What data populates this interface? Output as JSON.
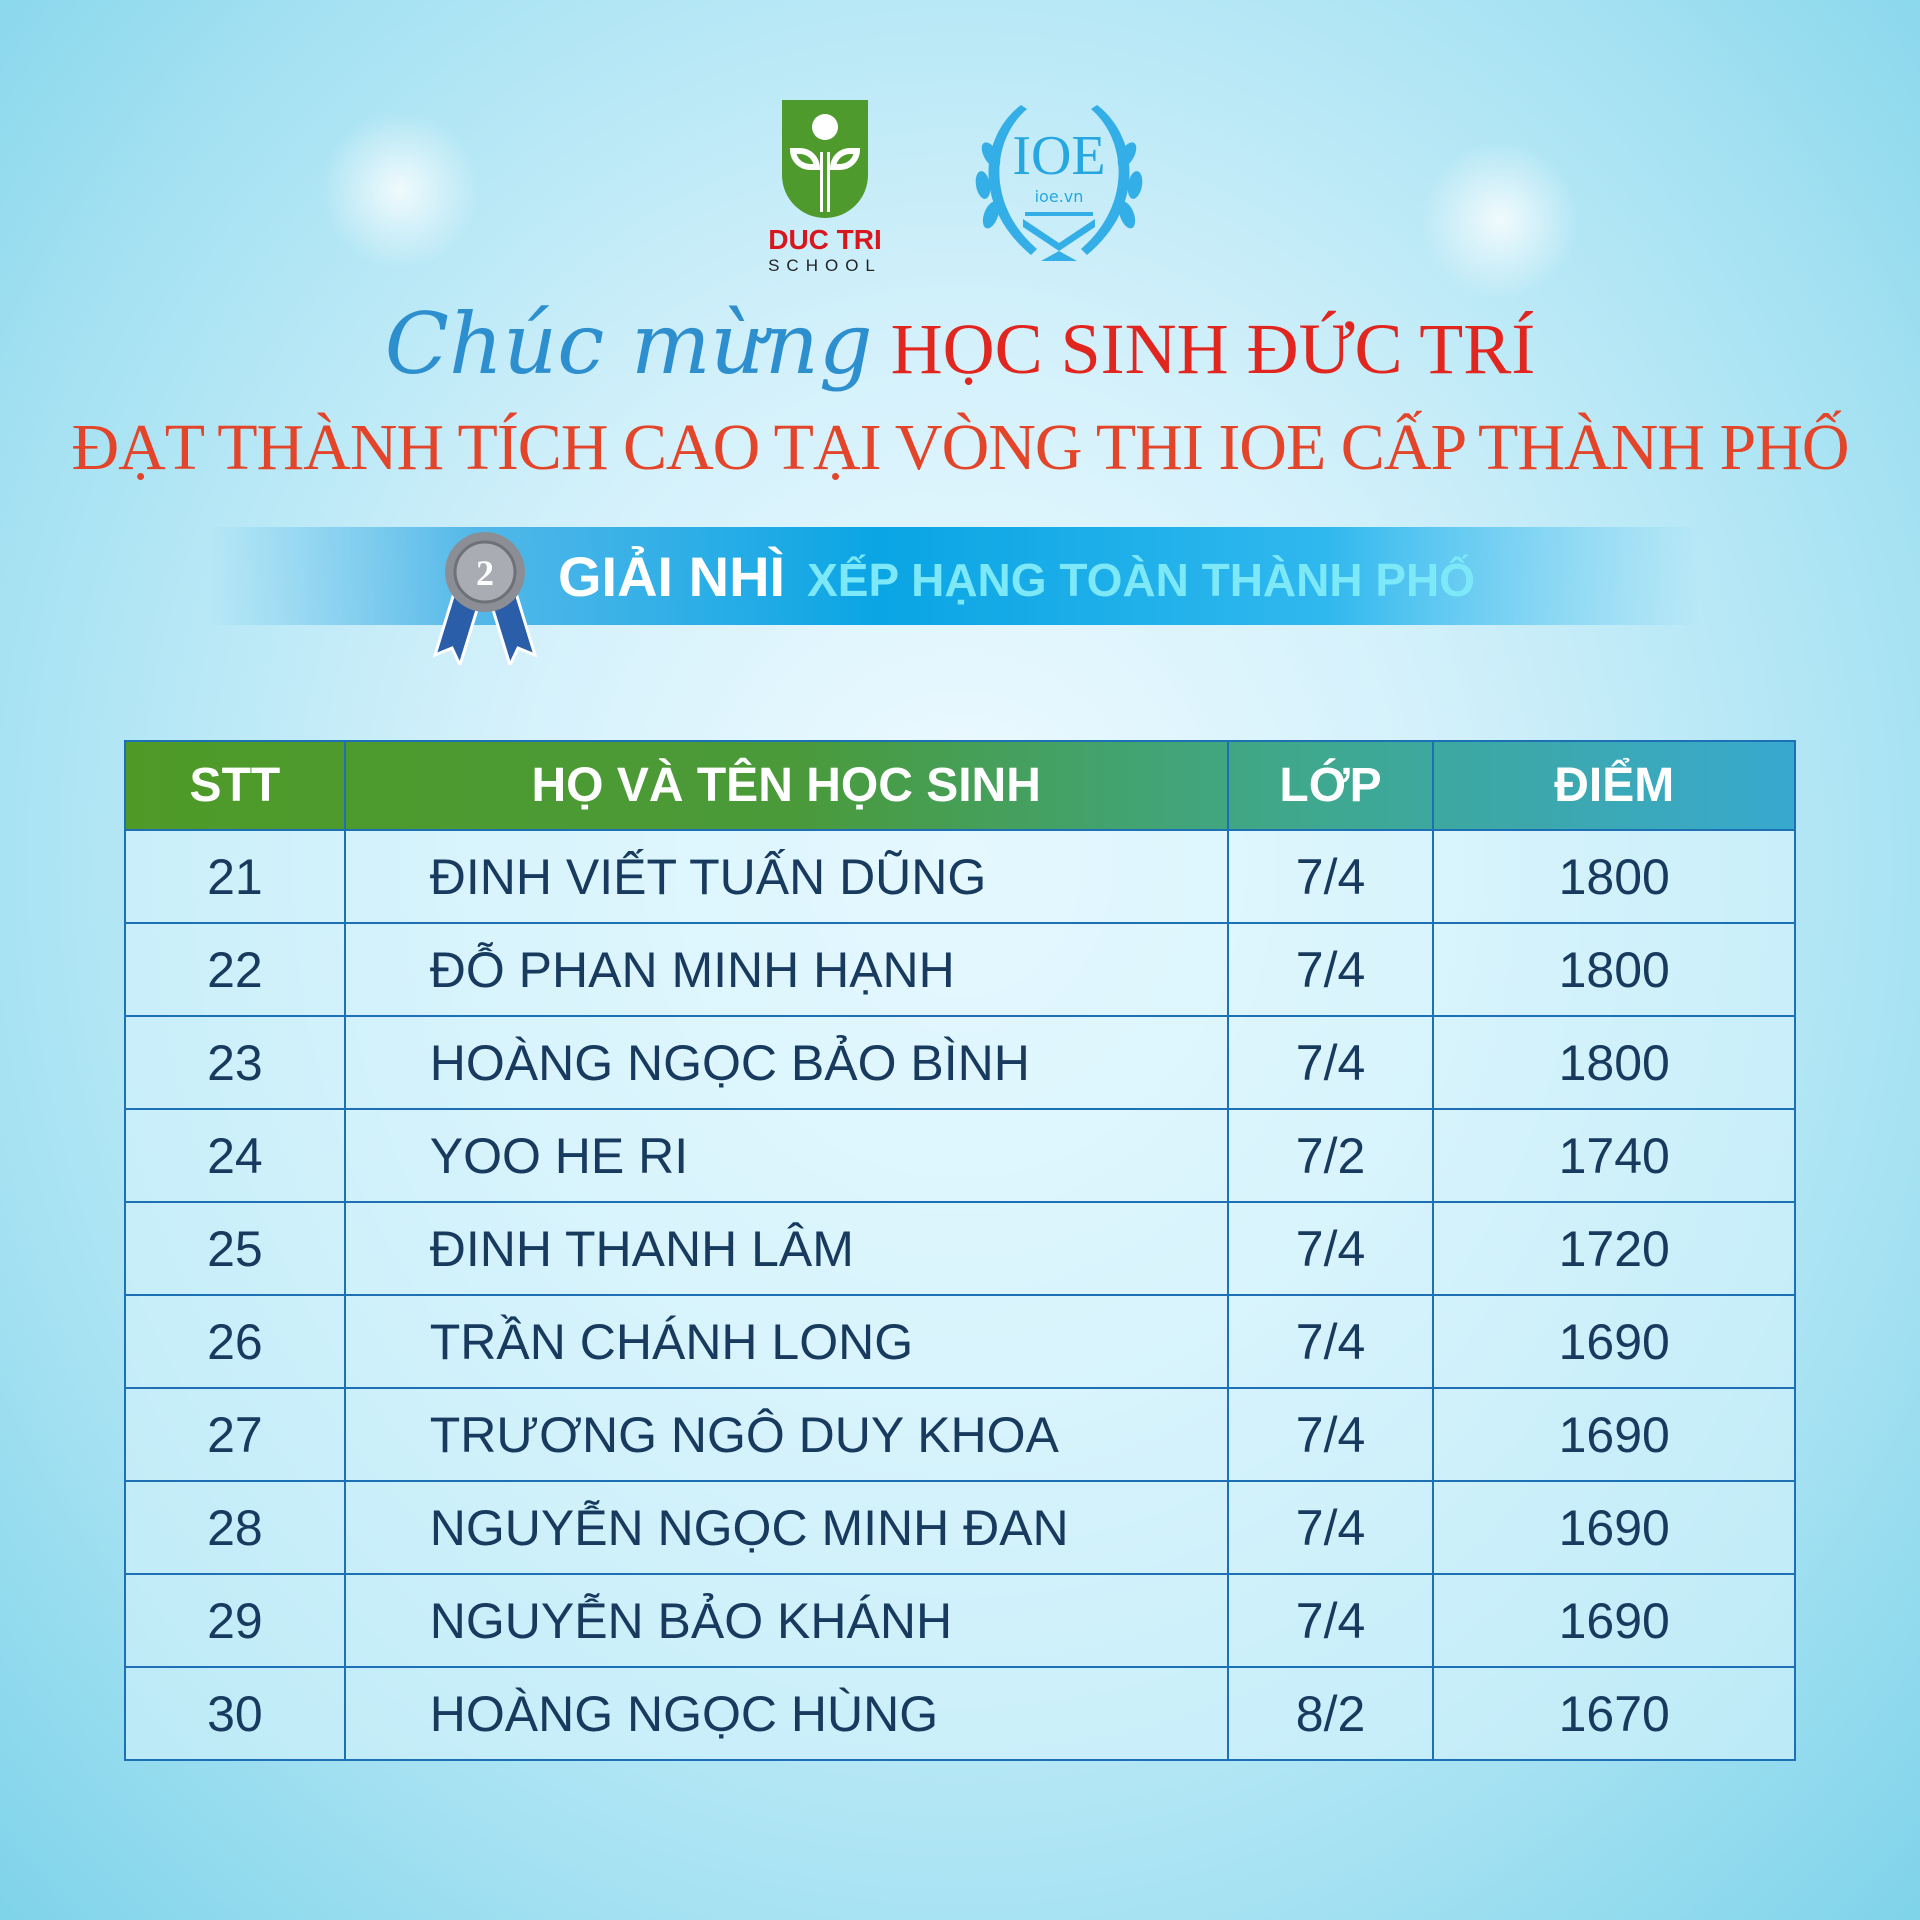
{
  "logos": {
    "school_name": "DUC TRI",
    "school_sub": "SCHOOL",
    "ioe_name": "IOE",
    "ioe_sub": "ioe.vn"
  },
  "title": {
    "script": "Chúc mừng",
    "line1": "HỌC SINH ĐỨC TRÍ",
    "line2": "ĐẠT THÀNH TÍCH CAO TẠI VÒNG THI IOE CẤP THÀNH PHỐ"
  },
  "award": {
    "medal_number": "2",
    "prize": "GIẢI NHÌ",
    "subtitle": "XẾP HẠNG TOÀN THÀNH PHỐ"
  },
  "table": {
    "headers": [
      "STT",
      "HỌ VÀ TÊN HỌC SINH",
      "LỚP",
      "ĐIỂM"
    ],
    "rows": [
      [
        "21",
        "ĐINH VIẾT TUẤN DŨNG",
        "7/4",
        "1800"
      ],
      [
        "22",
        "ĐỖ PHAN MINH HẠNH",
        "7/4",
        "1800"
      ],
      [
        "23",
        "HOÀNG NGỌC BẢO BÌNH",
        "7/4",
        "1800"
      ],
      [
        "24",
        "YOO HE RI",
        "7/2",
        "1740"
      ],
      [
        "25",
        "ĐINH THANH LÂM",
        "7/4",
        "1720"
      ],
      [
        "26",
        "TRẦN CHÁNH LONG",
        "7/4",
        "1690"
      ],
      [
        "27",
        "TRƯƠNG NGÔ DUY KHOA",
        "7/4",
        "1690"
      ],
      [
        "28",
        "NGUYỄN NGỌC MINH ĐAN",
        "7/4",
        "1690"
      ],
      [
        "29",
        "NGUYỄN BẢO KHÁNH",
        "7/4",
        "1690"
      ],
      [
        "30",
        "HOÀNG NGỌC HÙNG",
        "8/2",
        "1670"
      ]
    ]
  },
  "colors": {
    "title_red": "#e0261f",
    "script_blue": "#2e8fcf",
    "header_green": "#4f9a27",
    "header_teal": "#38a9cf",
    "text_navy": "#173a5e"
  }
}
